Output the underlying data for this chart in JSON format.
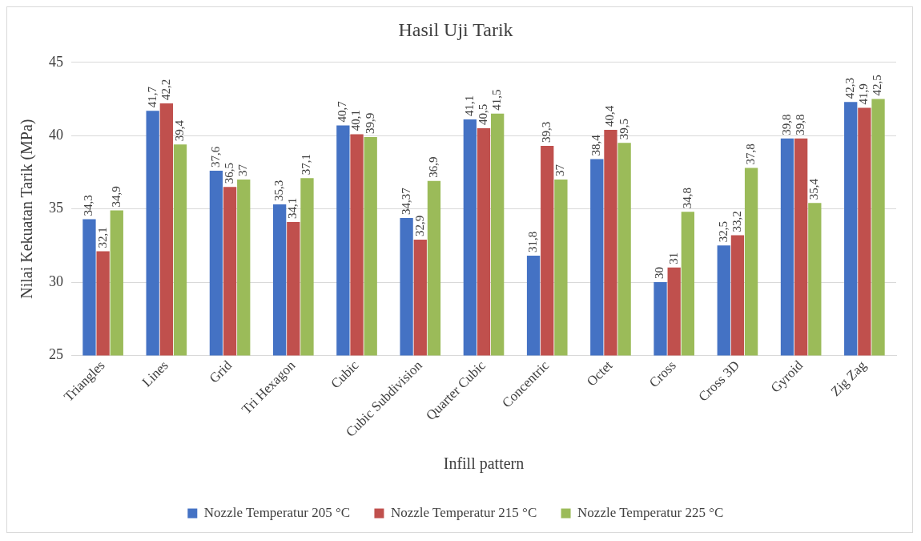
{
  "chart_data": {
    "type": "bar",
    "title": "Hasil Uji Tarik",
    "xlabel": "Infill pattern",
    "ylabel": "Nilai Kekuatan Tarik (MPa)",
    "categories": [
      "Triangles",
      "Lines",
      "Grid",
      "Tri Hexagon",
      "Cubic",
      "Cubic Subdivision",
      "Quarter Cubic",
      "Concentric",
      "Octet",
      "Cross",
      "Cross 3D",
      "Gyroid",
      "Zig Zag"
    ],
    "series": [
      {
        "name": "Nozzle Temperatur 205 °C",
        "color": "#4472c4",
        "values": [
          34.3,
          41.7,
          37.6,
          35.3,
          40.7,
          34.37,
          41.1,
          31.8,
          38.4,
          30,
          32.5,
          39.8,
          42.3
        ],
        "value_labels": [
          "34,3",
          "41,7",
          "37,6",
          "35,3",
          "40,7",
          "34,37",
          "41,1",
          "31,8",
          "38,4",
          "30",
          "32,5",
          "39,8",
          "42,3"
        ]
      },
      {
        "name": "Nozzle Temperatur 215 °C",
        "color": "#c0504d",
        "values": [
          32.1,
          42.2,
          36.5,
          34.1,
          40.1,
          32.9,
          40.5,
          39.3,
          40.4,
          31,
          33.2,
          39.8,
          41.9
        ],
        "value_labels": [
          "32,1",
          "42,2",
          "36,5",
          "34,1",
          "40,1",
          "32,9",
          "40,5",
          "39,3",
          "40,4",
          "31",
          "33,2",
          "39,8",
          "41,9"
        ]
      },
      {
        "name": "Nozzle Temperatur 225 °C",
        "color": "#9bbb59",
        "values": [
          34.9,
          39.4,
          37,
          37.1,
          39.9,
          36.9,
          41.5,
          37,
          39.5,
          34.8,
          37.8,
          35.4,
          42.5
        ],
        "value_labels": [
          "34,9",
          "39,4",
          "37",
          "37,1",
          "39,9",
          "36,9",
          "41,5",
          "37",
          "39,5",
          "34,8",
          "37,8",
          "35,4",
          "42,5"
        ]
      }
    ],
    "ylim": [
      25,
      45
    ],
    "yticks": [
      25,
      30,
      35,
      40,
      45
    ],
    "grid": "y",
    "legend": "bottom"
  }
}
